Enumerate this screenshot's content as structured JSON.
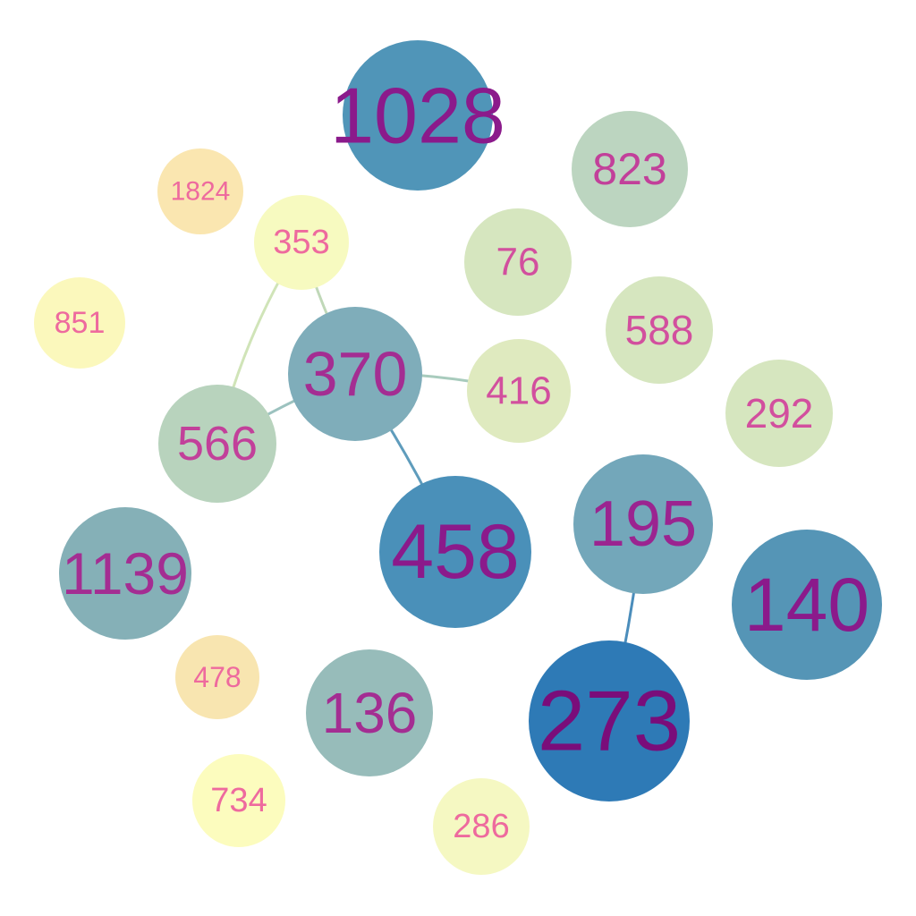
{
  "graph": {
    "nodes": [
      {
        "id": "1028",
        "label": "1028",
        "fill": "#5095b8",
        "text_color": "#8b1a8b"
      },
      {
        "id": "823",
        "label": "823",
        "fill": "#bcd5c0",
        "text_color": "#c2409a"
      },
      {
        "id": "1824",
        "label": "1824",
        "fill": "#fae6b0",
        "text_color": "#ee6a9e"
      },
      {
        "id": "353",
        "label": "353",
        "fill": "#f7fac0",
        "text_color": "#ee6a9e"
      },
      {
        "id": "76",
        "label": "76",
        "fill": "#d6e6bf",
        "text_color": "#d24f9e"
      },
      {
        "id": "851",
        "label": "851",
        "fill": "#fbf8bc",
        "text_color": "#ee6a9e"
      },
      {
        "id": "588",
        "label": "588",
        "fill": "#d6e6bf",
        "text_color": "#d24f9e"
      },
      {
        "id": "370",
        "label": "370",
        "fill": "#7fadba",
        "text_color": "#a42d92"
      },
      {
        "id": "416",
        "label": "416",
        "fill": "#dfeabf",
        "text_color": "#d24f9e"
      },
      {
        "id": "292",
        "label": "292",
        "fill": "#d6e6bf",
        "text_color": "#d24f9e"
      },
      {
        "id": "566",
        "label": "566",
        "fill": "#b8d3bd",
        "text_color": "#c2409a"
      },
      {
        "id": "458",
        "label": "458",
        "fill": "#4a90b9",
        "text_color": "#8b1a8b"
      },
      {
        "id": "195",
        "label": "195",
        "fill": "#73a7ba",
        "text_color": "#9b2490"
      },
      {
        "id": "140",
        "label": "140",
        "fill": "#5595b6",
        "text_color": "#8b1a8b"
      },
      {
        "id": "1139",
        "label": "1139",
        "fill": "#85b0b7",
        "text_color": "#a42d92"
      },
      {
        "id": "478",
        "label": "478",
        "fill": "#f8e5b0",
        "text_color": "#ee6a9e"
      },
      {
        "id": "136",
        "label": "136",
        "fill": "#97bcba",
        "text_color": "#a42d92"
      },
      {
        "id": "273",
        "label": "273",
        "fill": "#2e7ab6",
        "text_color": "#7a0d7a"
      },
      {
        "id": "734",
        "label": "734",
        "fill": "#fcfcbe",
        "text_color": "#ee6a9e"
      },
      {
        "id": "286",
        "label": "286",
        "fill": "#f5f8c2",
        "text_color": "#ee6a9e"
      }
    ],
    "edges": [
      {
        "from": "370",
        "to": "353",
        "color": "#c0d8b8"
      },
      {
        "from": "353",
        "to": "566",
        "color": "#d0e4b8"
      },
      {
        "from": "370",
        "to": "416",
        "color": "#a8cbbd"
      },
      {
        "from": "370",
        "to": "566",
        "color": "#9cc2bf"
      },
      {
        "from": "370",
        "to": "458",
        "color": "#5f9cbc"
      },
      {
        "from": "195",
        "to": "273",
        "color": "#4b8dbb"
      }
    ]
  }
}
